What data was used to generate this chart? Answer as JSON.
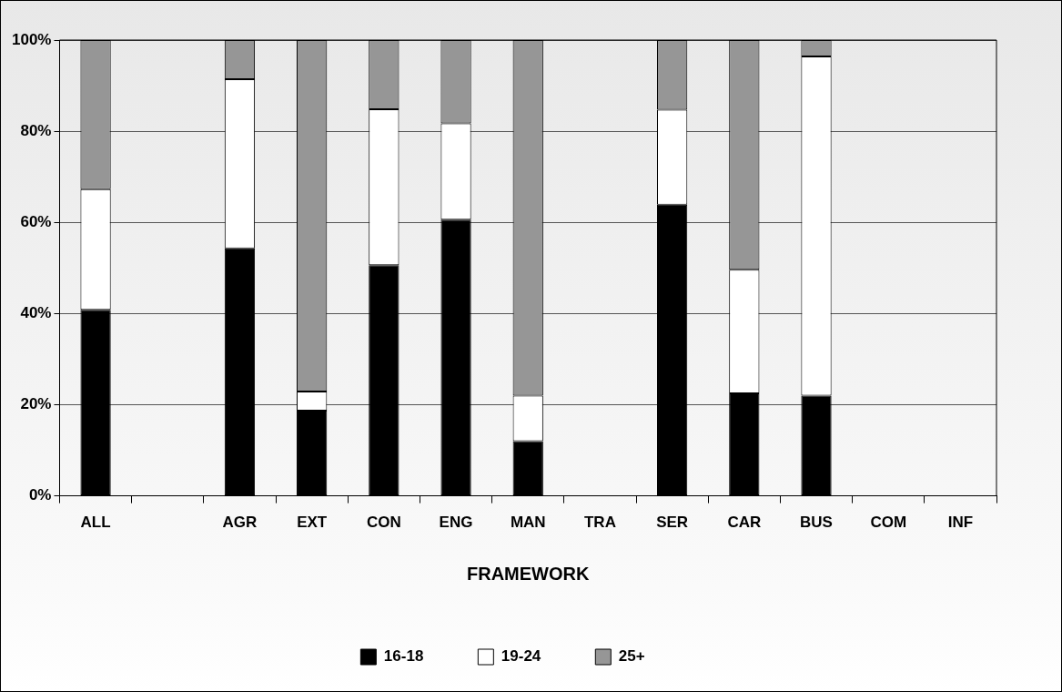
{
  "chart_data": {
    "type": "bar",
    "stacked": true,
    "xlabel": "FRAMEWORK",
    "categories": [
      "ALL",
      null,
      "AGR",
      "EXT",
      "CON",
      "ENG",
      "MAN",
      "TRA",
      "SER",
      "CAR",
      "BUS",
      "COM",
      "INF"
    ],
    "series": [
      {
        "name": "16-18",
        "color": "#000000",
        "values": [
          40.8,
          null,
          54.3,
          18.7,
          50.6,
          60.6,
          12.0,
          null,
          63.9,
          22.5,
          22.0,
          null,
          null
        ]
      },
      {
        "name": "19-24",
        "color": "#ffffff",
        "values": [
          26.5,
          null,
          37.1,
          4.2,
          34.2,
          21.1,
          10.0,
          null,
          20.8,
          27.1,
          74.4,
          null,
          null
        ]
      },
      {
        "name": "25+",
        "color": "#969696",
        "values": [
          32.7,
          null,
          8.6,
          77.1,
          15.2,
          18.3,
          78.0,
          null,
          15.3,
          50.4,
          3.6,
          null,
          null
        ]
      }
    ],
    "ylim": [
      0,
      100
    ],
    "yticks": [
      {
        "value": 0,
        "label": "0%"
      },
      {
        "value": 20,
        "label": "20%"
      },
      {
        "value": 40,
        "label": "40%"
      },
      {
        "value": 60,
        "label": "60%"
      },
      {
        "value": 80,
        "label": "80%"
      },
      {
        "value": 100,
        "label": "100%"
      }
    ],
    "grid": "y",
    "legend": "bottom"
  }
}
